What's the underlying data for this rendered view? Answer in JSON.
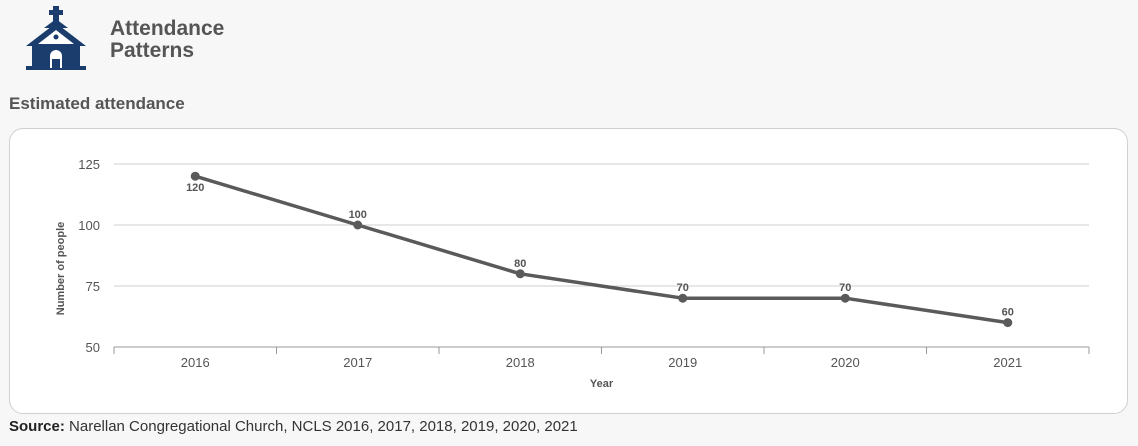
{
  "header": {
    "title_line1": "Attendance",
    "title_line2": "Patterns",
    "logo_icon": "church-icon",
    "logo_color": "#1b3d6e"
  },
  "section": {
    "subtitle": "Estimated attendance"
  },
  "source": {
    "label": "Source:",
    "text": "Narellan Congregational Church, NCLS 2016, 2017, 2018, 2019, 2020, 2021"
  },
  "chart_data": {
    "type": "line",
    "title": "",
    "xlabel": "Year",
    "ylabel": "Number of people",
    "categories": [
      "2016",
      "2017",
      "2018",
      "2019",
      "2020",
      "2021"
    ],
    "series": [
      {
        "values": [
          120,
          100,
          80,
          70,
          70,
          60
        ],
        "color": "#5a5a5a"
      }
    ],
    "data_labels": [
      "120",
      "100",
      "80",
      "70",
      "70",
      "60"
    ],
    "yticks": [
      50,
      75,
      100,
      125
    ],
    "ylim": [
      50,
      125
    ],
    "grid": true,
    "legend": "none"
  }
}
